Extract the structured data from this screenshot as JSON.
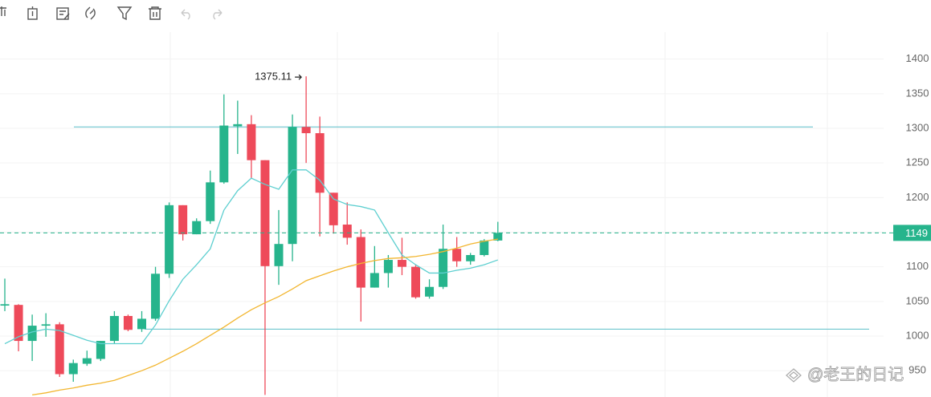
{
  "chart_data": {
    "type": "candlestick",
    "open": [
      1044,
      1045,
      993,
      1015,
      1017,
      945,
      960,
      967,
      993,
      1029,
      1010,
      1025,
      1090,
      1189,
      1147,
      1166,
      1222,
      1303,
      1306,
      1254,
      1101,
      1133,
      1302,
      1293,
      1207,
      1161,
      1143,
      1070,
      1091,
      1110,
      1100,
      1057,
      1071,
      1126,
      1108,
      1117,
      1138
    ],
    "high": [
      1083,
      1046,
      1031,
      1033,
      1020,
      966,
      979,
      993,
      1036,
      1031,
      1036,
      1100,
      1193,
      1189,
      1170,
      1239,
      1349,
      1340,
      1319,
      1254,
      1182,
      1320,
      1375.11,
      1317,
      1207,
      1193,
      1154,
      1130,
      1117,
      1142,
      1103,
      1082,
      1161,
      1143,
      1120,
      1140,
      1165
    ],
    "low": [
      1036,
      978,
      964,
      999,
      941,
      934,
      957,
      964,
      989,
      1007,
      1006,
      1022,
      1084,
      1138,
      1147,
      1162,
      1220,
      1263,
      1228,
      915,
      1074,
      1108,
      1250,
      1144,
      1148,
      1132,
      1021,
      1070,
      1070,
      1088,
      1054,
      1054,
      1068,
      1100,
      1103,
      1115,
      1137
    ],
    "close": [
      1046,
      993,
      1015,
      1017,
      945,
      961,
      968,
      993,
      1029,
      1009,
      1025,
      1090,
      1189,
      1147,
      1166,
      1222,
      1304,
      1306,
      1254,
      1101,
      1133,
      1302,
      1293,
      1207,
      1160,
      1142,
      1070,
      1091,
      1110,
      1100,
      1056,
      1071,
      1126,
      1108,
      1117,
      1138,
      1149
    ],
    "up_color": "#26b48c",
    "down_color": "#ee4a5a",
    "moving_averages": [
      {
        "color": "#5ecfd0",
        "values": [
          989,
          999,
          1006,
          1010,
          1008,
          1001,
          994,
          989,
          989,
          989,
          989,
          1016,
          1051,
          1082,
          1103,
          1126,
          1182,
          1210,
          1228,
          1219,
          1212,
          1240,
          1240,
          1225,
          1198,
          1190,
          1187,
          1182,
          1149,
          1117,
          1103,
          1091,
          1091,
          1095,
          1098,
          1103,
          1110
        ]
      },
      {
        "color": "#f2b630",
        "values": [
          null,
          null,
          915,
          918,
          922,
          925,
          929,
          932,
          936,
          943,
          950,
          958,
          968,
          978,
          989,
          1001,
          1013,
          1026,
          1038,
          1048,
          1057,
          1068,
          1080,
          1087,
          1094,
          1100,
          1105,
          1109,
          1112,
          1113,
          1115,
          1118,
          1122,
          1127,
          1133,
          1137,
          1140
        ]
      }
    ],
    "hlines": [
      {
        "value": 1302,
        "color": "#5bbfca"
      },
      {
        "value": 1010,
        "color": "#5bbfca"
      }
    ],
    "last_price": 1149,
    "last_price_color": "#26b48c",
    "annotation": {
      "value": 1375.11,
      "label": "1375.11"
    },
    "ylim": [
      912,
      1439
    ],
    "yticks": [
      950,
      1000,
      1050,
      1100,
      1150,
      1200,
      1250,
      1300,
      1350,
      1400
    ],
    "grid": true,
    "watermark": "@老王的日记"
  }
}
